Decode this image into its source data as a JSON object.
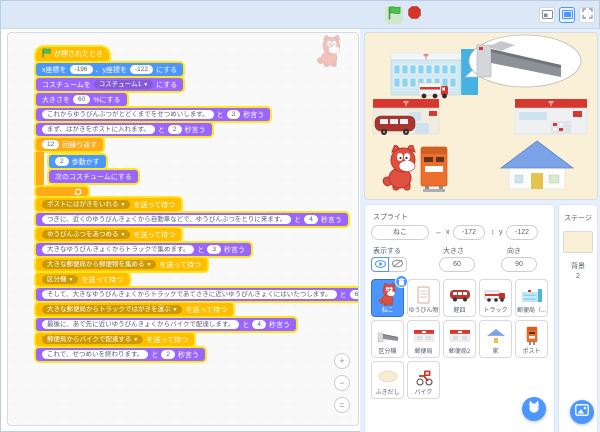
{
  "app": {
    "postal_mark": "〒"
  },
  "colors": {
    "motion": "#4C97FF",
    "looks": "#9966FF",
    "event": "#FFBF00",
    "control": "#FFAB19",
    "glow": "#FFE623",
    "selected_sprite": "#4C97FF",
    "backdrop": "#FAF0D8"
  },
  "script": {
    "blocks": [
      {
        "name": "when-flag-clicked",
        "kind": "hat",
        "color": "event",
        "parts": [
          {
            "t": "flag"
          },
          {
            "t": "txt",
            "v": "が押されたとき"
          }
        ]
      },
      {
        "name": "go-to-xy",
        "kind": "stack",
        "color": "motion",
        "parts": [
          {
            "t": "txt",
            "v": "x座標を"
          },
          {
            "t": "num",
            "v": "-196"
          },
          {
            "t": "txt",
            "v": "、y座標を"
          },
          {
            "t": "num",
            "v": "-122"
          },
          {
            "t": "txt",
            "v": "にする"
          }
        ]
      },
      {
        "name": "switch-costume",
        "kind": "stack",
        "color": "looks",
        "parts": [
          {
            "t": "txt",
            "v": "コスチュームを"
          },
          {
            "t": "dd",
            "v": "コスチューム1"
          },
          {
            "t": "txt",
            "v": "にする"
          }
        ]
      },
      {
        "name": "set-size",
        "kind": "stack",
        "color": "looks",
        "parts": [
          {
            "t": "txt",
            "v": "大きさを"
          },
          {
            "t": "num",
            "v": "60"
          },
          {
            "t": "txt",
            "v": "%にする"
          }
        ]
      },
      {
        "name": "say-intro",
        "kind": "stack",
        "color": "looks",
        "parts": [
          {
            "t": "str",
            "v": "これからゆうびんぶつがとどくまでをせつめいします。"
          },
          {
            "t": "txt",
            "v": "と"
          },
          {
            "t": "num",
            "v": "3"
          },
          {
            "t": "txt",
            "v": "秒言う"
          }
        ]
      },
      {
        "name": "say-post",
        "kind": "stack",
        "color": "looks",
        "parts": [
          {
            "t": "str",
            "v": "まず、はがきをポストに入れます。"
          },
          {
            "t": "txt",
            "v": "と"
          },
          {
            "t": "num",
            "v": "2"
          },
          {
            "t": "txt",
            "v": "秒言う"
          }
        ]
      },
      {
        "name": "repeat-12",
        "kind": "loop",
        "color": "control",
        "parts": [
          {
            "t": "num",
            "v": "12"
          },
          {
            "t": "txt",
            "v": "回繰り返す"
          }
        ],
        "children": [
          {
            "name": "move-steps",
            "kind": "stack",
            "color": "motion",
            "parts": [
              {
                "t": "num",
                "v": "2"
              },
              {
                "t": "txt",
                "v": "歩動かす"
              }
            ]
          },
          {
            "name": "next-costume",
            "kind": "stack",
            "color": "looks",
            "parts": [
              {
                "t": "txt",
                "v": "次のコスチュームにする"
              }
            ]
          }
        ]
      },
      {
        "name": "broadcast-wait-post",
        "kind": "stack",
        "color": "event",
        "parts": [
          {
            "t": "dd",
            "v": "ポストにはがきをいれる"
          },
          {
            "t": "txt",
            "v": "を送って待つ"
          }
        ]
      },
      {
        "name": "say-collect",
        "kind": "stack",
        "color": "looks",
        "parts": [
          {
            "t": "str",
            "v": "つぎに、近くのゆうびんきょくから自動車などで、ゆうびんぶつをとりに来ます。"
          },
          {
            "t": "txt",
            "v": "と"
          },
          {
            "t": "num",
            "v": "4"
          },
          {
            "t": "txt",
            "v": "秒言う"
          }
        ]
      },
      {
        "name": "broadcast-wait-collect",
        "kind": "stack",
        "color": "event",
        "parts": [
          {
            "t": "dd",
            "v": "ゆうびんぶつをあつめる"
          },
          {
            "t": "txt",
            "v": "を送って待つ"
          }
        ]
      },
      {
        "name": "say-truck",
        "kind": "stack",
        "color": "looks",
        "parts": [
          {
            "t": "str",
            "v": "大きなゆうびんきょくからトラックで集めます。"
          },
          {
            "t": "txt",
            "v": "と"
          },
          {
            "t": "num",
            "v": "3"
          },
          {
            "t": "txt",
            "v": "秒言う"
          }
        ]
      },
      {
        "name": "broadcast-wait-big-office",
        "kind": "stack",
        "color": "event",
        "parts": [
          {
            "t": "dd",
            "v": "大きな郵便局から郵便物を集める"
          },
          {
            "t": "txt",
            "v": "を送って待つ"
          }
        ]
      },
      {
        "name": "broadcast-wait-sorter",
        "kind": "stack",
        "color": "event",
        "parts": [
          {
            "t": "dd",
            "v": "区分機"
          },
          {
            "t": "txt",
            "v": "を送って待つ"
          }
        ]
      },
      {
        "name": "say-deliver",
        "kind": "stack",
        "color": "looks",
        "parts": [
          {
            "t": "str",
            "v": "そして、大きなゆうびんきょくからトラックであてさきに近いゆうびんきょくにはいたつします。"
          },
          {
            "t": "txt",
            "v": "と"
          },
          {
            "t": "num",
            "v": "6"
          },
          {
            "t": "txt",
            "v": "秒言う"
          }
        ]
      },
      {
        "name": "broadcast-wait-truck-carry",
        "kind": "stack",
        "color": "event",
        "parts": [
          {
            "t": "dd",
            "v": "大きな郵便局からトラックではがきを運ぶ"
          },
          {
            "t": "txt",
            "v": "を送って待つ"
          }
        ]
      },
      {
        "name": "say-bike",
        "kind": "stack",
        "color": "looks",
        "parts": [
          {
            "t": "str",
            "v": "最後に、あて先に近いゆうびんきょくからバイクで配達します。"
          },
          {
            "t": "txt",
            "v": "と"
          },
          {
            "t": "num",
            "v": "4"
          },
          {
            "t": "txt",
            "v": "秒言う"
          }
        ]
      },
      {
        "name": "broadcast-wait-bike",
        "kind": "stack",
        "color": "event",
        "parts": [
          {
            "t": "dd",
            "v": "郵便局からバイクで配達する"
          },
          {
            "t": "txt",
            "v": "を送って待つ"
          }
        ]
      },
      {
        "name": "say-end",
        "kind": "stack",
        "color": "looks",
        "parts": [
          {
            "t": "str",
            "v": "これで、せつめいを終わります。"
          },
          {
            "t": "txt",
            "v": "と"
          },
          {
            "t": "num",
            "v": "2"
          },
          {
            "t": "txt",
            "v": "秒言う"
          }
        ]
      }
    ]
  },
  "code_zoom": {
    "zoom_in": "+",
    "zoom_out": "−",
    "zoom_reset": "="
  },
  "sprite_panel": {
    "title": "スプライト",
    "name_value": "ねこ",
    "x_label": "x",
    "x_value": "-172",
    "y_label": "y",
    "y_value": "-122",
    "x_arrow": "↔",
    "y_arrow": "↕",
    "show_label": "表示する",
    "size_label": "大きさ",
    "size_value": "60",
    "direction_label": "向き",
    "direction_value": "90",
    "sprites": [
      {
        "name": "ねこ",
        "icon": "cat",
        "selected": true
      },
      {
        "name": "ゆうびん物",
        "icon": "mail"
      },
      {
        "name": "軽四",
        "icon": "van"
      },
      {
        "name": "トラック",
        "icon": "truck"
      },
      {
        "name": "郵便局（...",
        "icon": "big-post-office"
      },
      {
        "name": "区分機",
        "icon": "sorter"
      },
      {
        "name": "郵便局",
        "icon": "post-office"
      },
      {
        "name": "郵便局2",
        "icon": "post-office"
      },
      {
        "name": "家",
        "icon": "house"
      },
      {
        "name": "ポスト",
        "icon": "postbox"
      },
      {
        "name": "ふきだし",
        "icon": "bubble"
      },
      {
        "name": "バイク",
        "icon": "bike"
      }
    ]
  },
  "stage_panel": {
    "title": "ステージ",
    "backdrop_label": "背景",
    "backdrop_count": "2"
  }
}
